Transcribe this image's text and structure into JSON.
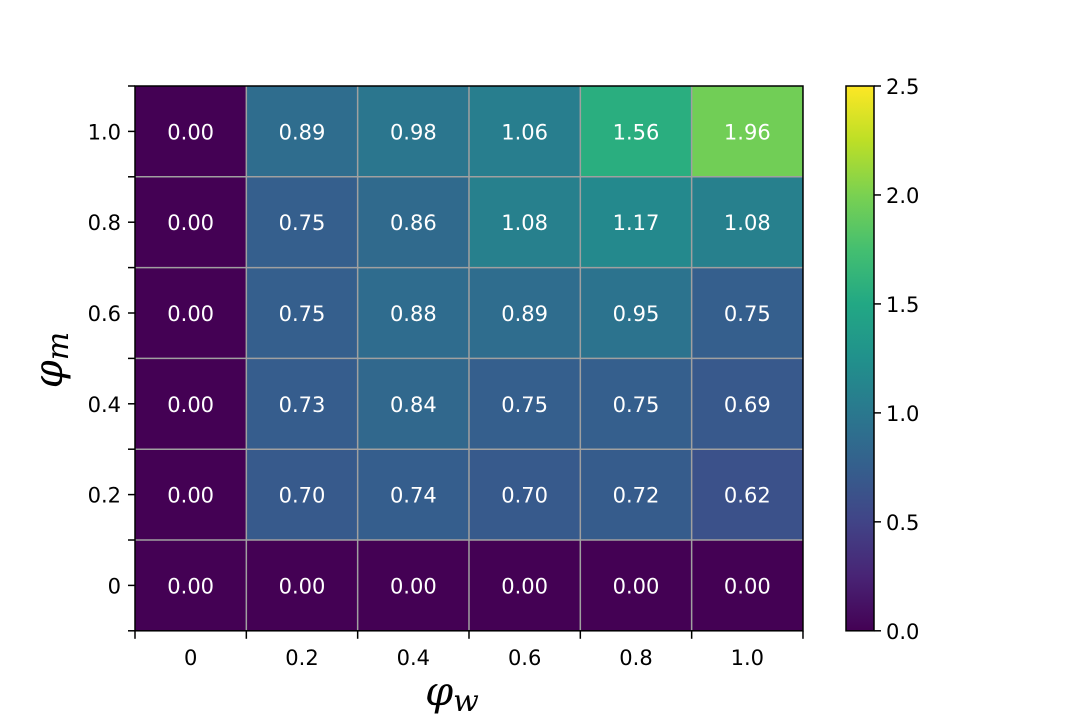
{
  "chart_data": {
    "type": "heatmap",
    "x_ticks": [
      "0",
      "0.2",
      "0.4",
      "0.6",
      "0.8",
      "1.0"
    ],
    "y_ticks": [
      "1.0",
      "0.8",
      "0.6",
      "0.4",
      "0.2",
      "0"
    ],
    "values": [
      [
        0.0,
        0.89,
        0.98,
        1.06,
        1.56,
        1.96
      ],
      [
        0.0,
        0.75,
        0.86,
        1.08,
        1.17,
        1.08
      ],
      [
        0.0,
        0.75,
        0.88,
        0.89,
        0.95,
        0.75
      ],
      [
        0.0,
        0.73,
        0.84,
        0.75,
        0.75,
        0.69
      ],
      [
        0.0,
        0.7,
        0.74,
        0.7,
        0.72,
        0.62
      ],
      [
        0.0,
        0.0,
        0.0,
        0.0,
        0.0,
        0.0
      ]
    ],
    "xlabel": "φ",
    "xlabel_sub": "w",
    "ylabel": "φ",
    "ylabel_sub": "m",
    "colorbar": {
      "vmin": 0.0,
      "vmax": 2.5,
      "ticks": [
        "0.0",
        "0.5",
        "1.0",
        "1.5",
        "2.0",
        "2.5"
      ],
      "colormap": "viridis"
    },
    "grid": true,
    "grid_color": "#a0a0a0"
  }
}
